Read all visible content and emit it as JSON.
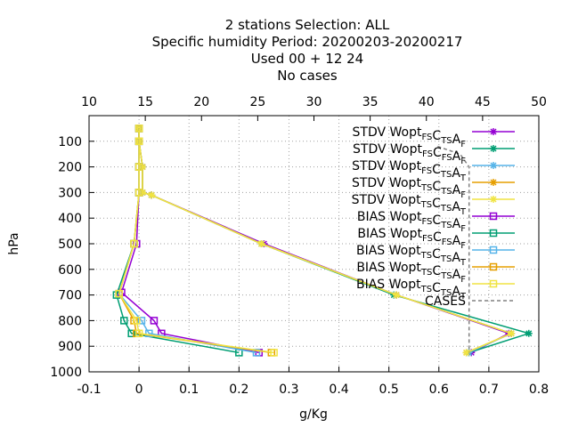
{
  "chart_data": {
    "type": "line",
    "title_lines": [
      "2 stations Selection: ALL",
      "Specific humidity  Period: 20200203-20200217",
      "Used  00 + 12 24",
      "No cases"
    ],
    "xlabel": "g/Kg",
    "ylabel": "hPa",
    "x2label": "",
    "xlim": [
      -0.1,
      0.8
    ],
    "x_ticks": [
      "-0.1",
      "0",
      "0.1",
      "0.2",
      "0.3",
      "0.4",
      "0.5",
      "0.6",
      "0.7",
      "0.8"
    ],
    "x2lim": [
      10,
      50
    ],
    "x2_ticks": [
      "10",
      "15",
      "20",
      "25",
      "30",
      "35",
      "40",
      "45",
      "50"
    ],
    "ylim": [
      1000,
      0
    ],
    "y_ticks": [
      "100",
      "200",
      "300",
      "400",
      "500",
      "600",
      "700",
      "800",
      "900",
      "1000"
    ],
    "grid": true,
    "legend_position": "top-right",
    "series": [
      {
        "name": "STDV Wopt_{FS}C_{TS}A_F",
        "kind": "STDV",
        "color": "#9400d3",
        "marker": "star",
        "x": [
          0.0,
          0.0,
          0.007,
          0.007,
          0.025,
          0.25,
          0.515,
          0.74,
          0.665
        ],
        "y": [
          50,
          100,
          200,
          300,
          310,
          500,
          700,
          850,
          925
        ]
      },
      {
        "name": "STDV Wopt_{FS}C_{FS}A_F",
        "kind": "STDV",
        "color": "#009e73",
        "marker": "star",
        "x": [
          0.0,
          0.0,
          0.007,
          0.007,
          0.025,
          0.245,
          0.51,
          0.78,
          0.66
        ],
        "y": [
          50,
          100,
          200,
          300,
          310,
          500,
          700,
          850,
          925
        ]
      },
      {
        "name": "STDV Wopt_{FS}C_{TS}A_T",
        "kind": "STDV",
        "color": "#56b4e9",
        "marker": "star",
        "x": [
          0.0,
          0.0,
          0.007,
          0.007,
          0.025,
          0.245,
          0.515,
          0.745,
          0.66
        ],
        "y": [
          50,
          100,
          200,
          300,
          310,
          500,
          700,
          850,
          925
        ]
      },
      {
        "name": "STDV Wopt_{TS}C_{TS}A_F",
        "kind": "STDV",
        "color": "#e69f00",
        "marker": "star",
        "x": [
          0.0,
          0.0,
          0.007,
          0.007,
          0.025,
          0.245,
          0.515,
          0.745,
          0.655
        ],
        "y": [
          50,
          100,
          200,
          300,
          310,
          500,
          700,
          850,
          925
        ]
      },
      {
        "name": "STDV Wopt_{TS}C_{TS}A_T",
        "kind": "STDV",
        "color": "#f0e442",
        "marker": "star",
        "x": [
          0.0,
          0.0,
          0.007,
          0.007,
          0.025,
          0.245,
          0.515,
          0.745,
          0.655
        ],
        "y": [
          50,
          100,
          200,
          300,
          310,
          500,
          700,
          850,
          925
        ]
      },
      {
        "name": "BIAS Wopt_{FS}C_{TS}A_F",
        "kind": "BIAS",
        "color": "#9400d3",
        "marker": "square",
        "x": [
          0.0,
          0.0,
          0.0,
          0.0,
          -0.005,
          -0.035,
          0.03,
          0.045,
          0.24
        ],
        "y": [
          50,
          100,
          200,
          300,
          500,
          690,
          800,
          850,
          925
        ]
      },
      {
        "name": "BIAS Wopt_{FS}C_{FS}A_F",
        "kind": "BIAS",
        "color": "#009e73",
        "marker": "square",
        "x": [
          0.0,
          0.0,
          0.0,
          0.0,
          -0.01,
          -0.045,
          -0.03,
          -0.015,
          0.2
        ],
        "y": [
          50,
          100,
          200,
          300,
          500,
          700,
          800,
          850,
          925
        ]
      },
      {
        "name": "BIAS Wopt_{TS}C_{TS}A_T",
        "kind": "BIAS",
        "color": "#56b4e9",
        "marker": "square",
        "x": [
          0.0,
          0.0,
          0.0,
          0.0,
          -0.01,
          -0.04,
          0.005,
          0.02,
          0.235
        ],
        "y": [
          50,
          100,
          200,
          300,
          500,
          695,
          800,
          850,
          925
        ]
      },
      {
        "name": "BIAS Wopt_{TS}C_{TS}A_F",
        "kind": "BIAS",
        "color": "#e69f00",
        "marker": "square",
        "x": [
          0.0,
          0.0,
          0.0,
          0.0,
          -0.01,
          -0.04,
          -0.01,
          -0.005,
          0.265
        ],
        "y": [
          50,
          100,
          200,
          300,
          500,
          695,
          800,
          850,
          925
        ]
      },
      {
        "name": "BIAS Wopt_{TS}C_{TS}A_T",
        "kind": "BIAS",
        "color": "#f0e442",
        "marker": "square",
        "x": [
          0.0,
          0.0,
          0.0,
          0.0,
          -0.01,
          -0.04,
          -0.005,
          0.0,
          0.27
        ],
        "y": [
          50,
          100,
          200,
          300,
          500,
          695,
          800,
          850,
          925
        ]
      },
      {
        "name": "CASES",
        "kind": "CASES",
        "color": "#808080",
        "marker": "none",
        "axis": "x2",
        "x": [
          41,
          43,
          43.8,
          43.8,
          43.8,
          43.8,
          43.8,
          43.8
        ],
        "y": [
          120,
          150,
          200,
          300,
          500,
          700,
          850,
          925
        ]
      }
    ]
  }
}
